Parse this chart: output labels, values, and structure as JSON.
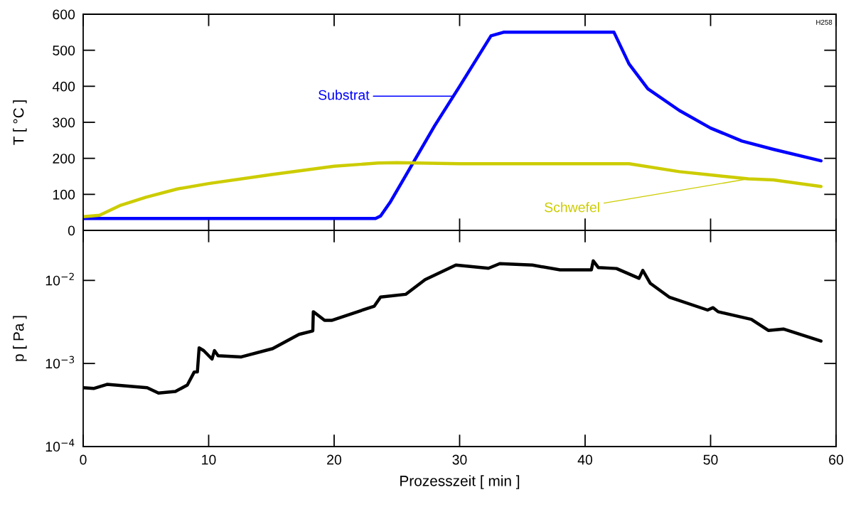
{
  "chart_data": [
    {
      "type": "line",
      "ylabel": "T [ °C ]",
      "xlim": [
        0,
        60
      ],
      "xticks": [
        0,
        10,
        20,
        30,
        40,
        50,
        60
      ],
      "ylim": [
        0,
        600
      ],
      "yticks": [
        0,
        100,
        200,
        300,
        400,
        500,
        600
      ],
      "tick_labels": "y",
      "grid": false,
      "legend": false,
      "marker": "none",
      "line_style": "solid",
      "annotations": [
        "H258"
      ],
      "series": [
        {
          "name": "Substrat",
          "color": "#0000ff",
          "x": [
            0,
            5,
            10,
            15,
            20,
            23.3,
            23.7,
            24.5,
            26,
            28,
            30,
            32.5,
            33.5,
            36,
            40,
            42.3,
            43.5,
            45,
            47.5,
            50,
            52.5,
            55,
            58.8
          ],
          "values": [
            33,
            33,
            33,
            33,
            33,
            33,
            40,
            80,
            170,
            290,
            400,
            540,
            550,
            550,
            550,
            550,
            462,
            393,
            333,
            284,
            248,
            225,
            193
          ]
        },
        {
          "name": "Schwefel",
          "color": "#cccc00",
          "x": [
            0,
            1.3,
            3,
            5,
            7.5,
            10,
            15,
            20,
            23.5,
            25,
            30,
            35,
            40,
            43.5,
            47.5,
            50,
            53,
            55,
            58.8
          ],
          "values": [
            38,
            42,
            70,
            92,
            115,
            130,
            155,
            178,
            187,
            188,
            185,
            185,
            185,
            185,
            163,
            154,
            143,
            140,
            122
          ]
        }
      ]
    },
    {
      "type": "line",
      "xlabel": "Prozesszeit [ min ]",
      "ylabel": "p [ Pa ]",
      "log": "y",
      "xlim": [
        0,
        60
      ],
      "xticks": [
        0,
        10,
        20,
        30,
        40,
        50,
        60
      ],
      "ylim": [
        0.0001,
        0.04
      ],
      "yticks": [
        {
          "value": 0.0001,
          "label": "10$^{−4}$"
        },
        {
          "value": 0.001,
          "label": "10$^{−3}$"
        },
        {
          "value": 0.01,
          "label": "10$^{−2}$"
        }
      ],
      "grid": false,
      "legend": false,
      "marker": "none",
      "line_style": "solid",
      "series": [
        {
          "color": "#000000",
          "x": [
            0,
            0.83,
            1.9,
            5.1,
            6.0,
            7.35,
            8.3,
            8.85,
            9.1,
            9.24,
            9.6,
            10.27,
            10.46,
            10.75,
            12.6,
            15.1,
            17.2,
            18.3,
            18.34,
            19.24,
            19.8,
            23.2,
            23.7,
            25.7,
            27.25,
            29.7,
            32.3,
            33.2,
            35.8,
            38.0,
            40.5,
            40.65,
            41.05,
            42.5,
            44.3,
            44.6,
            45.2,
            46.7,
            49.76,
            50.2,
            50.6,
            53.25,
            54.6,
            55.8,
            58.8
          ],
          "values": [
            0.00051,
            0.0005,
            0.00056,
            0.00051,
            0.00044,
            0.00046,
            0.00055,
            0.00079,
            0.00079,
            0.00154,
            0.00143,
            0.00113,
            0.00143,
            0.00124,
            0.0012,
            0.00151,
            0.00224,
            0.00247,
            0.0042,
            0.0033,
            0.0033,
            0.0049,
            0.0063,
            0.0068,
            0.0102,
            0.0153,
            0.014,
            0.0159,
            0.0153,
            0.0134,
            0.0134,
            0.0172,
            0.0143,
            0.0139,
            0.0106,
            0.0132,
            0.0092,
            0.0063,
            0.0044,
            0.0047,
            0.0042,
            0.0034,
            0.0025,
            0.0026,
            0.00186
          ]
        }
      ]
    }
  ]
}
